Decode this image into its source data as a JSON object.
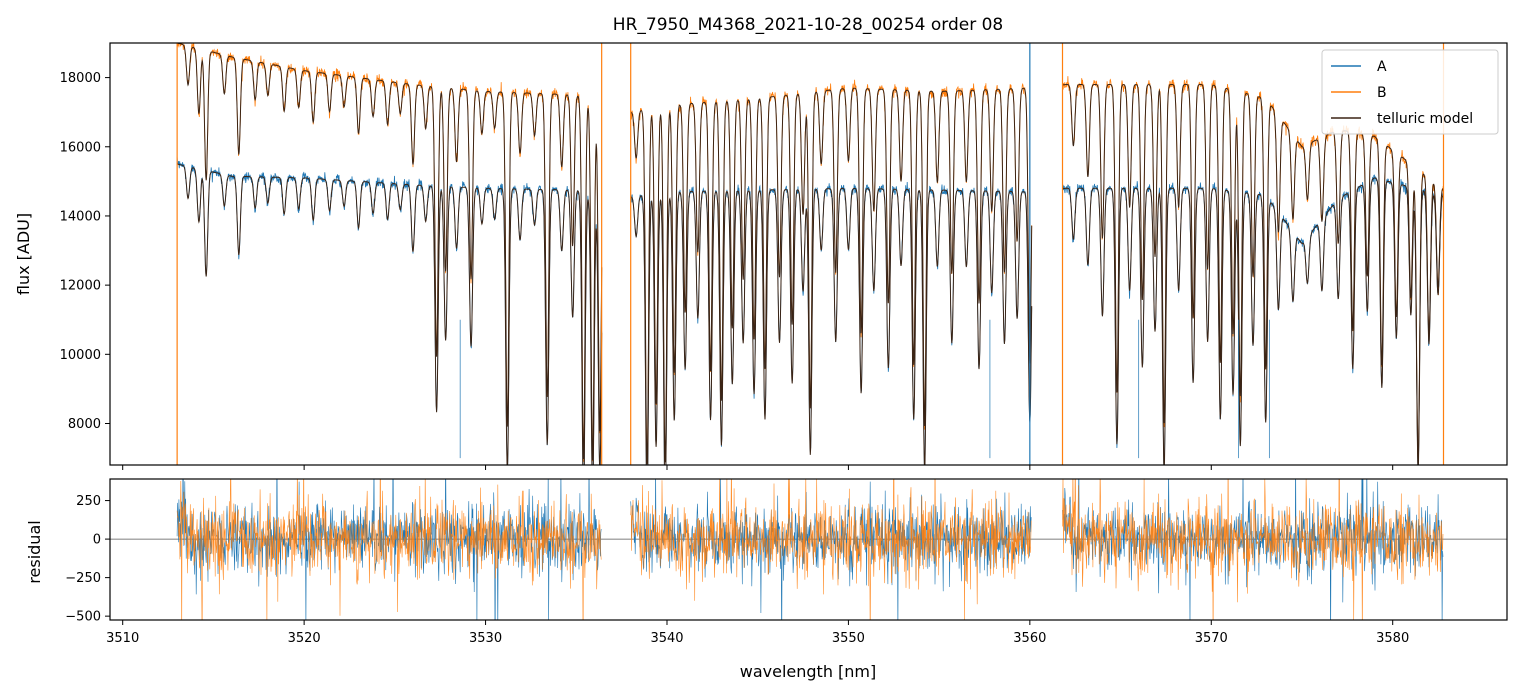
{
  "chart_data": [
    {
      "type": "line",
      "title": "HR_7950_M4368_2021-10-28_00254  order 08",
      "ylabel": "flux [ADU]",
      "xlim": [
        3509.3,
        3586.3
      ],
      "ylim": [
        6800,
        19000
      ],
      "xticks": [
        3510,
        3520,
        3530,
        3540,
        3550,
        3560,
        3570,
        3580
      ],
      "yticks": [
        8000,
        10000,
        12000,
        14000,
        16000,
        18000
      ],
      "legend_position": "top-right",
      "segments": [
        [
          3513.0,
          3536.4
        ],
        [
          3538.0,
          3560.1
        ],
        [
          3561.8,
          3582.8
        ]
      ],
      "series": [
        {
          "name": "A",
          "color": "#1f77b4",
          "continuum": [
            [
              3513.0,
              15500
            ],
            [
              3516,
              15150
            ],
            [
              3520,
              15100
            ],
            [
              3526,
              14900
            ],
            [
              3530,
              14800
            ],
            [
              3535,
              14750
            ],
            [
              3538,
              14550
            ],
            [
              3540,
              14700
            ],
            [
              3545,
              14750
            ],
            [
              3550,
              14800
            ],
            [
              3555,
              14750
            ],
            [
              3560,
              14700
            ],
            [
              3562,
              14800
            ],
            [
              3566,
              14800
            ],
            [
              3570,
              14800
            ],
            [
              3573,
              14600
            ],
            [
              3575,
              13200
            ],
            [
              3577,
              14500
            ],
            [
              3579,
              15100
            ],
            [
              3582.8,
              14600
            ]
          ]
        },
        {
          "name": "B",
          "color": "#ff7f0e",
          "continuum": [
            [
              3513.0,
              19000
            ],
            [
              3516,
              18600
            ],
            [
              3520,
              18200
            ],
            [
              3526,
              17800
            ],
            [
              3530,
              17600
            ],
            [
              3535,
              17500
            ],
            [
              3538,
              17000
            ],
            [
              3540,
              17200
            ],
            [
              3545,
              17400
            ],
            [
              3550,
              17700
            ],
            [
              3555,
              17600
            ],
            [
              3560,
              17700
            ],
            [
              3562,
              17800
            ],
            [
              3566,
              17800
            ],
            [
              3570,
              17800
            ],
            [
              3573,
              17400
            ],
            [
              3575,
              16000
            ],
            [
              3577,
              16500
            ],
            [
              3579,
              16300
            ],
            [
              3582.8,
              14800
            ]
          ]
        },
        {
          "name": "telluric model",
          "color": "#3b2415"
        }
      ],
      "absorption_lines": [
        [
          3513.6,
          0.06
        ],
        [
          3514.2,
          0.1
        ],
        [
          3514.6,
          0.2
        ],
        [
          3515.6,
          0.06
        ],
        [
          3516.4,
          0.15
        ],
        [
          3517.3,
          0.06
        ],
        [
          3518.0,
          0.05
        ],
        [
          3518.9,
          0.07
        ],
        [
          3519.7,
          0.06
        ],
        [
          3520.5,
          0.08
        ],
        [
          3521.4,
          0.06
        ],
        [
          3522.2,
          0.05
        ],
        [
          3523.0,
          0.09
        ],
        [
          3523.8,
          0.06
        ],
        [
          3524.6,
          0.07
        ],
        [
          3525.3,
          0.05
        ],
        [
          3526.0,
          0.13
        ],
        [
          3526.7,
          0.07
        ],
        [
          3527.3,
          0.44
        ],
        [
          3527.8,
          0.3
        ],
        [
          3528.4,
          0.12
        ],
        [
          3529.2,
          0.31
        ],
        [
          3529.8,
          0.07
        ],
        [
          3530.5,
          0.06
        ],
        [
          3531.2,
          0.55
        ],
        [
          3531.9,
          0.1
        ],
        [
          3532.7,
          0.07
        ],
        [
          3533.4,
          0.5
        ],
        [
          3534.2,
          0.12
        ],
        [
          3534.8,
          0.25
        ],
        [
          3535.4,
          0.6
        ],
        [
          3535.9,
          0.6
        ],
        [
          3536.3,
          0.55
        ],
        [
          3538.3,
          0.08
        ],
        [
          3538.9,
          0.6
        ],
        [
          3539.4,
          0.5
        ],
        [
          3539.9,
          0.6
        ],
        [
          3540.4,
          0.45
        ],
        [
          3541.0,
          0.35
        ],
        [
          3541.7,
          0.25
        ],
        [
          3542.4,
          0.45
        ],
        [
          3543.0,
          0.5
        ],
        [
          3543.6,
          0.38
        ],
        [
          3544.2,
          0.3
        ],
        [
          3544.8,
          0.4
        ],
        [
          3545.4,
          0.45
        ],
        [
          3546.2,
          0.3
        ],
        [
          3546.9,
          0.38
        ],
        [
          3547.5,
          0.2
        ],
        [
          3547.9,
          0.52
        ],
        [
          3548.5,
          0.12
        ],
        [
          3549.3,
          0.3
        ],
        [
          3550.0,
          0.12
        ],
        [
          3550.7,
          0.4
        ],
        [
          3551.4,
          0.2
        ],
        [
          3552.2,
          0.35
        ],
        [
          3552.9,
          0.15
        ],
        [
          3553.6,
          0.45
        ],
        [
          3554.2,
          0.55
        ],
        [
          3554.9,
          0.15
        ],
        [
          3555.7,
          0.3
        ],
        [
          3556.5,
          0.15
        ],
        [
          3557.2,
          0.35
        ],
        [
          3557.9,
          0.2
        ],
        [
          3558.6,
          0.3
        ],
        [
          3559.3,
          0.25
        ],
        [
          3560.0,
          0.45
        ],
        [
          3562.4,
          0.1
        ],
        [
          3563.2,
          0.15
        ],
        [
          3564.0,
          0.25
        ],
        [
          3564.8,
          0.5
        ],
        [
          3565.5,
          0.2
        ],
        [
          3566.2,
          0.35
        ],
        [
          3566.9,
          0.28
        ],
        [
          3567.4,
          0.55
        ],
        [
          3568.2,
          0.2
        ],
        [
          3569.0,
          0.38
        ],
        [
          3569.8,
          0.3
        ],
        [
          3570.5,
          0.45
        ],
        [
          3571.2,
          0.4
        ],
        [
          3571.6,
          0.5
        ],
        [
          3572.3,
          0.3
        ],
        [
          3573.0,
          0.45
        ],
        [
          3573.7,
          0.2
        ],
        [
          3574.5,
          0.15
        ],
        [
          3575.3,
          0.1
        ],
        [
          3576.1,
          0.15
        ],
        [
          3577.0,
          0.2
        ],
        [
          3577.8,
          0.35
        ],
        [
          3578.6,
          0.25
        ],
        [
          3579.4,
          0.4
        ],
        [
          3580.2,
          0.3
        ],
        [
          3581.0,
          0.25
        ],
        [
          3581.4,
          0.55
        ],
        [
          3582.0,
          0.3
        ],
        [
          3582.5,
          0.2
        ]
      ]
    },
    {
      "type": "line",
      "xlabel": "wavelength [nm]",
      "ylabel": "residual",
      "xlim": [
        3509.3,
        3586.3
      ],
      "ylim": [
        -525,
        390
      ],
      "xticks": [
        3510,
        3520,
        3530,
        3540,
        3550,
        3560,
        3570,
        3580
      ],
      "yticks": [
        -500,
        -250,
        0,
        250
      ],
      "ytick_labels": [
        "−500",
        "−250",
        "0",
        "250"
      ],
      "zero_line": true,
      "series": [
        {
          "name": "A",
          "color": "#1f77b4",
          "noise_sd": 110
        },
        {
          "name": "B",
          "color": "#ff7f0e",
          "noise_sd": 125
        }
      ]
    }
  ]
}
